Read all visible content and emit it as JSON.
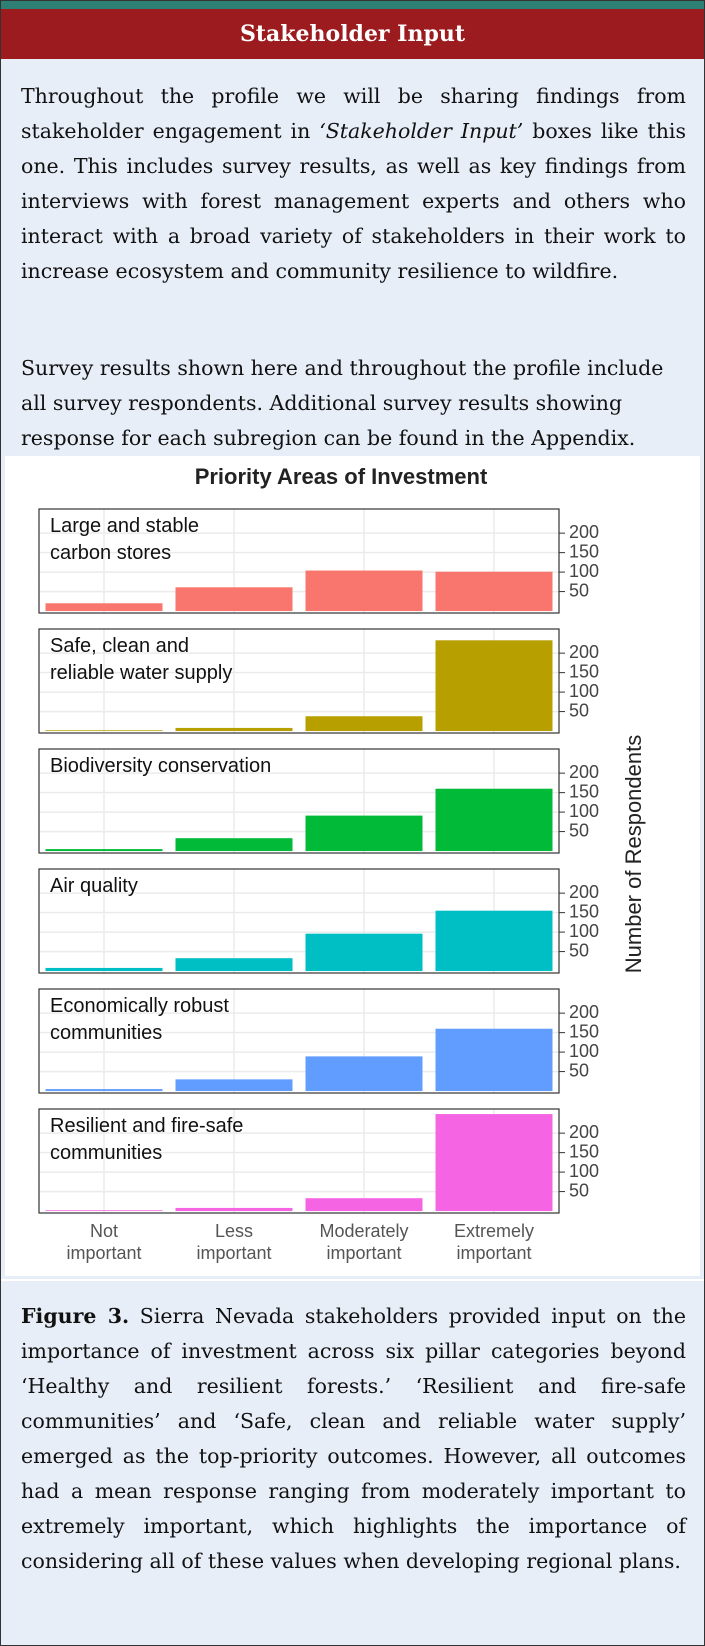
{
  "header": {
    "title": "Stakeholder Input"
  },
  "intro": {
    "paragraphs": [
      [
        "Throughout the profile we will be sharing findings from stakeholder engagement in ",
        "‘Stakeholder Input’",
        " boxes like this one. This includes survey results, as well as key findings from interviews with forest management experts and others who interact with a broad variety of stakeholders in their work to increase ecosystem and community resilience to wildfire."
      ],
      [
        "Survey results shown here and throughout the profile include all survey respondents. Additional survey results showing response for each subregion can be found in the Appendix."
      ]
    ]
  },
  "chart_data": {
    "type": "bar",
    "title": "Priority Areas of Investment",
    "y_label": "Number of Respondents",
    "categories": [
      "Not important",
      "Less important",
      "Moderately important",
      "Extremely important"
    ],
    "ylim": [
      -5,
      262
    ],
    "yticks": [
      50,
      100,
      150,
      200
    ],
    "grid": true,
    "series": [
      {
        "name": "Large and stable carbon stores",
        "color": "#f8766d",
        "values": [
          20,
          61,
          104,
          101
        ]
      },
      {
        "name": "Safe, clean and reliable water supply",
        "color": "#b79f00",
        "values": [
          2,
          8,
          38,
          233
        ]
      },
      {
        "name": "Biodiversity conservation",
        "color": "#00ba38",
        "values": [
          5,
          33,
          91,
          160
        ]
      },
      {
        "name": "Air quality",
        "color": "#00bfc4",
        "values": [
          8,
          33,
          96,
          155
        ]
      },
      {
        "name": "Economically robust communities",
        "color": "#619cff",
        "values": [
          5,
          30,
          89,
          160
        ]
      },
      {
        "name": "Resilient and fire-safe communities",
        "color": "#f564e3",
        "values": [
          2,
          8,
          33,
          249
        ]
      }
    ]
  },
  "caption": {
    "label": "Figure 3.",
    "text": " Sierra Nevada stakeholders provided input on the importance of investment across six pillar categories beyond ‘Healthy and resilient forests.’ ‘Resilient and fire-safe communities’ and ‘Safe, clean and reliable water supply’ emerged as the top-priority outcomes. However, all outcomes had a mean response ranging from moderately important to extremely important, which highlights the importance of considering all of these values when developing regional plans."
  }
}
